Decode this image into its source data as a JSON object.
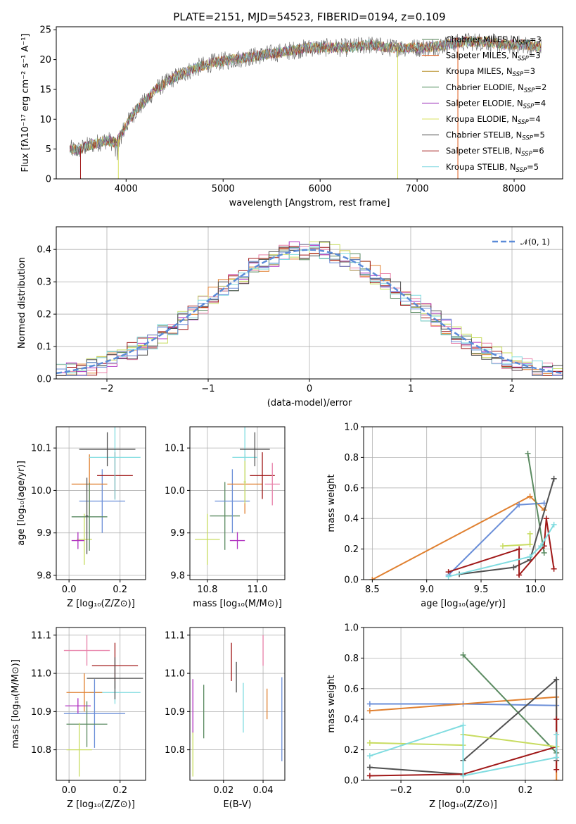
{
  "colors": {
    "chabrier_miles": "#4f7f50",
    "salpeter_miles": "#e05c1a",
    "kroupa_miles": "#b8902a",
    "chabrier_elodie": "#4f8a58",
    "salpeter_elodie": "#9b30b8",
    "kroupa_elodie": "#d8e060",
    "chabrier_stelib": "#505050",
    "salpeter_stelib": "#a01818",
    "kroupa_stelib": "#80d8e0",
    "gaussian": "#5b8bd8",
    "blue": "#6a8ed8",
    "orange": "#e08030",
    "green": "#5a8a60",
    "yellowgreen": "#c8dc60",
    "purple": "#b030c0",
    "darkred": "#a01818",
    "cyan": "#80dce0",
    "darkgray": "#505050",
    "pink": "#e880a8"
  },
  "chart_data": [
    {
      "type": "line",
      "panel": "spectrum",
      "title": "PLATE=2151, MJD=54523, FIBERID=0194, z=0.109",
      "xlabel": "wavelength [Angstrom, rest frame]",
      "ylabel": "Flux [fλ10⁻¹⁷ erg cm⁻² s⁻¹ A⁻¹]",
      "xlim": [
        3280,
        8500
      ],
      "ylim": [
        0,
        25.5
      ],
      "xticks": [
        "4000",
        "5000",
        "6000",
        "7000",
        "8000"
      ],
      "yticks": [
        "0",
        "5",
        "10",
        "15",
        "20",
        "25"
      ],
      "legend_position": "right",
      "legend": [
        "Chabrier MILES, N_SSP=3",
        "Salpeter MILES, N_SSP=3",
        "Kroupa MILES, N_SSP=3",
        "Chabrier ELODIE, N_SSP=2",
        "Salpeter ELODIE, N_SSP=4",
        "Kroupa ELODIE, N_SSP=4",
        "Chabrier STELIB, N_SSP=5",
        "Salpeter STELIB, N_SSP=6",
        "Kroupa STELIB, N_SSP=5"
      ],
      "continuum": {
        "x": [
          3420,
          3500,
          3600,
          3700,
          3800,
          3900,
          4000,
          4100,
          4200,
          4300,
          4400,
          4500,
          4700,
          4900,
          5100,
          5300,
          5500,
          5700,
          5900,
          6100,
          6300,
          6500,
          6700,
          6900,
          7100,
          7300,
          7500,
          7700,
          7900,
          8100,
          8280
        ],
        "y": [
          5.0,
          4.8,
          5.5,
          6.0,
          6.5,
          6.0,
          9.0,
          11.5,
          13.0,
          15.0,
          16.0,
          17.0,
          18.5,
          19.5,
          20.0,
          20.5,
          21.0,
          21.5,
          22.0,
          22.0,
          22.0,
          22.5,
          22.0,
          22.0,
          22.0,
          22.5,
          23.0,
          23.0,
          22.5,
          22.5,
          22.0
        ]
      }
    },
    {
      "type": "histogram",
      "panel": "residuals",
      "xlabel": "(data-model)/error",
      "ylabel": "Normed distribution",
      "xlim": [
        -2.5,
        2.5
      ],
      "ylim": [
        0,
        0.47
      ],
      "xticks": [
        "−2",
        "−1",
        "0",
        "1",
        "2"
      ],
      "yticks": [
        "0.0",
        "0.1",
        "0.2",
        "0.3",
        "0.4"
      ],
      "legend_position": "top-right",
      "gaussian_label": "𝒩(0, 1)",
      "bin_width": 0.1,
      "bin_start": -2.5
    },
    {
      "type": "scatter",
      "panel": "age-vs-Z",
      "xlabel": "Z [log₁₀(Z/Z⊙)]",
      "ylabel": "age  [log₁₀(age/yr)]",
      "xlim": [
        -0.05,
        0.3
      ],
      "ylim": [
        9.79,
        10.15
      ],
      "xticks": [
        "0.0",
        "0.2"
      ],
      "yticks": [
        "9.8",
        "9.9",
        "10.0",
        "10.1"
      ],
      "points": [
        {
          "color": "blue",
          "x": 0.13,
          "xerr": 0.09,
          "y": 9.975,
          "yerr": 0.075
        },
        {
          "color": "orange",
          "x": 0.08,
          "xerr": 0.07,
          "y": 10.015,
          "yerr": 0.07
        },
        {
          "color": "yellowgreen",
          "x": 0.06,
          "xerr": 0.03,
          "y": 9.885,
          "yerr": 0.06
        },
        {
          "color": "green",
          "x": 0.08,
          "xerr": 0.07,
          "y": 9.938,
          "yerr": 0.08
        },
        {
          "color": "purple",
          "x": 0.035,
          "xerr": 0.025,
          "y": 9.882,
          "yerr": 0.02
        },
        {
          "color": "darkred",
          "x": 0.18,
          "xerr": 0.07,
          "y": 10.035,
          "yerr": 0.055
        },
        {
          "color": "cyan",
          "x": 0.18,
          "xerr": 0.1,
          "y": 10.078,
          "yerr": 0.1
        },
        {
          "color": "darkgray",
          "x": 0.15,
          "xerr": 0.11,
          "y": 10.097,
          "yerr": 0.04
        },
        {
          "color": "darkgray",
          "x": 0.07,
          "xerr": 0.005,
          "y": 9.94,
          "yerr": 0.09
        }
      ]
    },
    {
      "type": "scatter",
      "panel": "age-vs-mass",
      "xlabel": "mass [log₁₀(M/M⊙)]",
      "ylabel": "",
      "xlim": [
        10.73,
        11.11
      ],
      "ylim": [
        9.79,
        10.15
      ],
      "xticks": [
        "10.8",
        "11.0"
      ],
      "yticks": [
        "9.8",
        "9.9",
        "10.0",
        "10.1"
      ],
      "points": [
        {
          "color": "yellowgreen",
          "x": 10.8,
          "xerr": 0.05,
          "y": 9.885,
          "yerr": 0.06
        },
        {
          "color": "green",
          "x": 10.87,
          "xerr": 0.06,
          "y": 9.94,
          "yerr": 0.08
        },
        {
          "color": "blue",
          "x": 10.9,
          "xerr": 0.07,
          "y": 9.975,
          "yerr": 0.075
        },
        {
          "color": "orange",
          "x": 10.95,
          "xerr": 0.07,
          "y": 10.015,
          "yerr": 0.07
        },
        {
          "color": "purple",
          "x": 10.92,
          "xerr": 0.03,
          "y": 9.882,
          "yerr": 0.02
        },
        {
          "color": "cyan",
          "x": 10.95,
          "xerr": 0.05,
          "y": 10.078,
          "yerr": 0.1
        },
        {
          "color": "darkgray",
          "x": 10.99,
          "xerr": 0.06,
          "y": 10.097,
          "yerr": 0.04
        },
        {
          "color": "darkred",
          "x": 11.02,
          "xerr": 0.05,
          "y": 10.035,
          "yerr": 0.055
        },
        {
          "color": "pink",
          "x": 11.06,
          "xerr": 0.03,
          "y": 10.015,
          "yerr": 0.05
        },
        {
          "color": "yellowgreen",
          "x": 10.95,
          "xerr": 0.005,
          "y": 10.02,
          "yerr": 0.05
        }
      ]
    },
    {
      "type": "line",
      "panel": "mass-weight-vs-age",
      "xlabel": "age  [log₁₀(age/yr)]",
      "ylabel": "mass weight",
      "xlim": [
        8.42,
        10.25
      ],
      "ylim": [
        0,
        1.0
      ],
      "xticks": [
        "8.5",
        "9.0",
        "9.5",
        "10.0"
      ],
      "yticks": [
        "0.0",
        "0.2",
        "0.4",
        "0.6",
        "0.8",
        "1.0"
      ],
      "series": [
        {
          "color": "orange",
          "x": [
            8.5,
            9.95,
            10.08
          ],
          "y": [
            0.0,
            0.545,
            0.455
          ]
        },
        {
          "color": "blue",
          "x": [
            9.2,
            9.85,
            10.08
          ],
          "y": [
            0.03,
            0.49,
            0.5
          ]
        },
        {
          "color": "green",
          "x": [
            9.93,
            10.08
          ],
          "y": [
            0.825,
            0.175
          ]
        },
        {
          "color": "darkgray",
          "x": [
            9.3,
            9.8,
            9.95,
            10.17
          ],
          "y": [
            0.035,
            0.08,
            0.13,
            0.66
          ]
        },
        {
          "color": "darkred",
          "x": [
            9.2,
            9.85,
            9.85,
            10.08,
            10.1,
            10.17
          ],
          "y": [
            0.05,
            0.2,
            0.03,
            0.22,
            0.4,
            0.07
          ]
        },
        {
          "color": "yellowgreen",
          "x": [
            9.7,
            9.95,
            9.95
          ],
          "y": [
            0.22,
            0.23,
            0.3
          ]
        },
        {
          "color": "cyan",
          "x": [
            9.2,
            9.95,
            10.05,
            10.17
          ],
          "y": [
            0.02,
            0.15,
            0.22,
            0.36
          ]
        }
      ]
    },
    {
      "type": "scatter",
      "panel": "mass-vs-Z",
      "xlabel": "Z [log₁₀(Z/Z⊙)]",
      "ylabel": "mass [log₁₀(M/M⊙)]",
      "xlim": [
        -0.05,
        0.3
      ],
      "ylim": [
        10.72,
        11.12
      ],
      "xticks": [
        "0.0",
        "0.2"
      ],
      "yticks": [
        "10.8",
        "10.9",
        "11.0",
        "11.1"
      ],
      "points": [
        {
          "color": "pink",
          "x": 0.07,
          "xerr": 0.09,
          "y": 11.06,
          "yerr": 0.04
        },
        {
          "color": "darkred",
          "x": 0.18,
          "xerr": 0.09,
          "y": 11.02,
          "yerr": 0.06
        },
        {
          "color": "cyan",
          "x": 0.18,
          "xerr": 0.1,
          "y": 10.95,
          "yerr": 0.03
        },
        {
          "color": "darkgray",
          "x": 0.18,
          "xerr": 0.11,
          "y": 10.987,
          "yerr": 0.055
        },
        {
          "color": "orange",
          "x": 0.06,
          "xerr": 0.07,
          "y": 10.95,
          "yerr": 0.05
        },
        {
          "color": "blue",
          "x": 0.1,
          "xerr": 0.12,
          "y": 10.895,
          "yerr": 0.09
        },
        {
          "color": "purple",
          "x": 0.035,
          "xerr": 0.05,
          "y": 10.915,
          "yerr": 0.02
        },
        {
          "color": "green",
          "x": 0.07,
          "xerr": 0.08,
          "y": 10.867,
          "yerr": 0.06
        },
        {
          "color": "yellowgreen",
          "x": 0.04,
          "xerr": 0.05,
          "y": 10.8,
          "yerr": 0.07
        }
      ]
    },
    {
      "type": "scatter",
      "panel": "mass-vs-EBV",
      "xlabel": "E(B-V)",
      "ylabel": "",
      "xlim": [
        0.003,
        0.051
      ],
      "ylim": [
        10.72,
        11.12
      ],
      "xticks": [
        "0.02",
        "0.04"
      ],
      "yticks": [
        "10.8",
        "10.9",
        "11.0",
        "11.1"
      ],
      "points": [
        {
          "color": "yellowgreen",
          "x": 0.0045,
          "xerr": 0,
          "y": 10.79,
          "yerr": 0.06
        },
        {
          "color": "purple",
          "x": 0.0045,
          "xerr": 0,
          "y": 10.915,
          "yerr": 0.07
        },
        {
          "color": "green",
          "x": 0.01,
          "xerr": 0,
          "y": 10.9,
          "yerr": 0.07
        },
        {
          "color": "darkred",
          "x": 0.024,
          "xerr": 0,
          "y": 11.03,
          "yerr": 0.05
        },
        {
          "color": "darkgray",
          "x": 0.0265,
          "xerr": 0,
          "y": 10.99,
          "yerr": 0.04
        },
        {
          "color": "cyan",
          "x": 0.03,
          "xerr": 0,
          "y": 10.91,
          "yerr": 0.065
        },
        {
          "color": "pink",
          "x": 0.04,
          "xerr": 0,
          "y": 11.06,
          "yerr": 0.04
        },
        {
          "color": "orange",
          "x": 0.042,
          "xerr": 0,
          "y": 10.92,
          "yerr": 0.04
        },
        {
          "color": "blue",
          "x": 0.0495,
          "xerr": 0,
          "y": 10.88,
          "yerr": 0.11
        }
      ]
    },
    {
      "type": "line",
      "panel": "mass-weight-vs-Z",
      "xlabel": "Z [log₁₀(Z/Z⊙)]",
      "ylabel": "mass weight",
      "xlim": [
        -0.32,
        0.32
      ],
      "ylim": [
        0,
        1.0
      ],
      "xticks": [
        "−0.2",
        "0.0",
        "0.2"
      ],
      "yticks": [
        "0.0",
        "0.2",
        "0.4",
        "0.6",
        "0.8",
        "1.0"
      ],
      "series": [
        {
          "color": "blue",
          "x": [
            -0.3,
            0.0,
            0.3
          ],
          "y": [
            0.5,
            0.5,
            0.49
          ]
        },
        {
          "color": "orange",
          "x": [
            -0.3,
            0.3,
            0.3
          ],
          "y": [
            0.455,
            0.545,
            0.0
          ]
        },
        {
          "color": "green",
          "x": [
            0.0,
            0.3
          ],
          "y": [
            0.82,
            0.18
          ]
        },
        {
          "color": "darkgray",
          "x": [
            -0.3,
            0.0,
            0.0,
            0.3,
            0.3
          ],
          "y": [
            0.085,
            0.04,
            0.13,
            0.66,
            0.13
          ]
        },
        {
          "color": "darkred",
          "x": [
            -0.3,
            0.0,
            0.3,
            0.3,
            0.3
          ],
          "y": [
            0.03,
            0.04,
            0.22,
            0.4,
            0.07
          ]
        },
        {
          "color": "yellowgreen",
          "x": [
            -0.3,
            0.0,
            0.0,
            0.3,
            0.3
          ],
          "y": [
            0.245,
            0.23,
            0.3,
            0.22,
            0.22
          ]
        },
        {
          "color": "cyan",
          "x": [
            -0.3,
            0.0,
            0.0,
            0.3,
            0.3
          ],
          "y": [
            0.16,
            0.36,
            0.03,
            0.15,
            0.3
          ]
        }
      ]
    }
  ]
}
